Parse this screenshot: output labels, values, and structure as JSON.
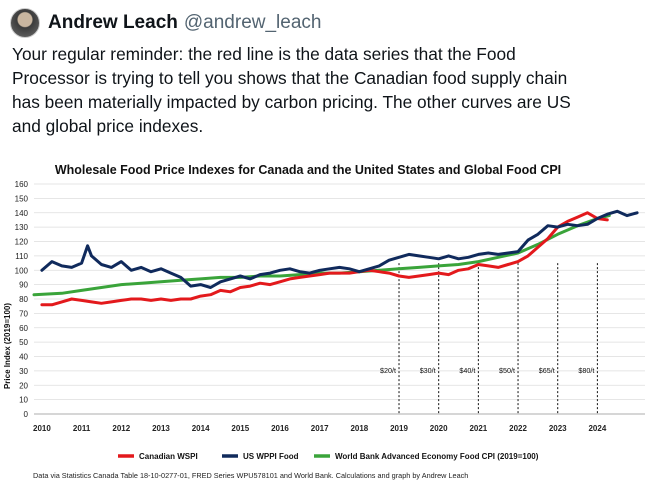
{
  "user": {
    "name": "Andrew Leach",
    "handle": "@andrew_leach"
  },
  "tweet": {
    "line1": "Your regular reminder: the red line is the data series that the Food",
    "line2": "Processor is trying to tell you shows that the Canadian food supply chain",
    "line3": "has been materially impacted by carbon pricing. The other curves are US",
    "line4": "and global price indexes."
  },
  "chart_data": {
    "type": "line",
    "title": "Wholesale Food Price Indexes for Canada and the United States and Global Food CPI",
    "ylabel": "Price Index (2019=100)",
    "xlabel": "",
    "ylim": [
      0,
      160
    ],
    "yticks": [
      "0",
      "10",
      "20",
      "30",
      "40",
      "50",
      "60",
      "70",
      "80",
      "90",
      "100",
      "110",
      "120",
      "130",
      "140",
      "150",
      "160"
    ],
    "xlim": [
      2009.8,
      2025.2
    ],
    "xticks": [
      "2010",
      "2011",
      "2012",
      "2013",
      "2014",
      "2015",
      "2016",
      "2017",
      "2018",
      "2019",
      "2020",
      "2021",
      "2022",
      "2023",
      "2024"
    ],
    "grid": "horizontal",
    "legend_position": "bottom",
    "source": "Data via Statistics Canada Table 18-10-0277-01, FRED Series WPU578101 and World Bank. Calculations and graph by Andrew Leach",
    "annotations": [
      {
        "x": 2019.0,
        "label": "$20/t"
      },
      {
        "x": 2020.0,
        "label": "$30/t"
      },
      {
        "x": 2021.0,
        "label": "$40/t"
      },
      {
        "x": 2022.0,
        "label": "$50/t"
      },
      {
        "x": 2023.0,
        "label": "$65/t"
      },
      {
        "x": 2024.0,
        "label": "$80/t"
      }
    ],
    "series": [
      {
        "name": "Canadian WSPI",
        "color": "#e3191c",
        "x": [
          2010.0,
          2010.25,
          2010.5,
          2010.75,
          2011.0,
          2011.25,
          2011.5,
          2011.75,
          2012.0,
          2012.25,
          2012.5,
          2012.75,
          2013.0,
          2013.25,
          2013.5,
          2013.75,
          2014.0,
          2014.25,
          2014.5,
          2014.75,
          2015.0,
          2015.25,
          2015.5,
          2015.75,
          2016.0,
          2016.25,
          2016.5,
          2016.75,
          2017.0,
          2017.25,
          2017.5,
          2017.75,
          2018.0,
          2018.25,
          2018.5,
          2018.75,
          2019.0,
          2019.25,
          2019.5,
          2019.75,
          2020.0,
          2020.25,
          2020.5,
          2020.75,
          2021.0,
          2021.25,
          2021.5,
          2021.75,
          2022.0,
          2022.25,
          2022.5,
          2022.75,
          2023.0,
          2023.25,
          2023.5,
          2023.75,
          2024.0,
          2024.25
        ],
        "values": [
          76,
          76,
          78,
          80,
          79,
          78,
          77,
          78,
          79,
          80,
          80,
          79,
          80,
          79,
          80,
          80,
          82,
          83,
          86,
          85,
          88,
          89,
          91,
          90,
          92,
          94,
          95,
          96,
          97,
          98,
          98,
          98,
          99,
          100,
          99,
          98,
          96,
          95,
          96,
          97,
          98,
          97,
          100,
          101,
          104,
          103,
          102,
          104,
          106,
          110,
          116,
          122,
          130,
          134,
          137,
          140,
          136,
          135
        ]
      },
      {
        "name": "US WPPI Food",
        "color": "#102a5c",
        "x": [
          2010.0,
          2010.25,
          2010.5,
          2010.75,
          2011.0,
          2011.15,
          2011.25,
          2011.5,
          2011.75,
          2012.0,
          2012.25,
          2012.5,
          2012.75,
          2013.0,
          2013.25,
          2013.5,
          2013.75,
          2014.0,
          2014.25,
          2014.5,
          2014.75,
          2015.0,
          2015.25,
          2015.5,
          2015.75,
          2016.0,
          2016.25,
          2016.5,
          2016.75,
          2017.0,
          2017.25,
          2017.5,
          2017.75,
          2018.0,
          2018.25,
          2018.5,
          2018.75,
          2019.0,
          2019.25,
          2019.5,
          2019.75,
          2020.0,
          2020.25,
          2020.5,
          2020.75,
          2021.0,
          2021.25,
          2021.5,
          2021.75,
          2022.0,
          2022.25,
          2022.5,
          2022.75,
          2023.0,
          2023.25,
          2023.5,
          2023.75,
          2024.0,
          2024.25,
          2024.5,
          2024.75,
          2025.0
        ],
        "values": [
          100,
          106,
          103,
          102,
          105,
          117,
          110,
          104,
          102,
          106,
          100,
          102,
          99,
          101,
          98,
          95,
          89,
          90,
          88,
          92,
          94,
          96,
          94,
          97,
          98,
          100,
          101,
          99,
          98,
          100,
          101,
          102,
          101,
          99,
          101,
          103,
          107,
          109,
          111,
          110,
          109,
          108,
          110,
          108,
          109,
          111,
          112,
          111,
          112,
          113,
          121,
          125,
          131,
          130,
          132,
          131,
          132,
          136,
          139,
          141,
          138,
          140
        ]
      },
      {
        "name": "World Bank Advanced Economy Food CPI (2019=100)",
        "color": "#3aa43a",
        "x": [
          2009.8,
          2010.5,
          2011.0,
          2011.5,
          2012.0,
          2012.5,
          2013.0,
          2013.5,
          2014.0,
          2014.5,
          2015.0,
          2015.5,
          2016.0,
          2016.5,
          2017.0,
          2017.5,
          2018.0,
          2018.5,
          2019.0,
          2019.5,
          2020.0,
          2020.5,
          2021.0,
          2021.5,
          2022.0,
          2022.5,
          2023.0,
          2023.5,
          2024.0,
          2024.3
        ],
        "values": [
          83,
          84,
          86,
          88,
          90,
          91,
          92,
          93,
          94,
          95,
          95,
          96,
          96,
          97,
          98,
          98,
          99,
          100,
          101,
          102,
          103,
          104,
          106,
          109,
          112,
          118,
          125,
          131,
          136,
          138
        ]
      }
    ]
  }
}
